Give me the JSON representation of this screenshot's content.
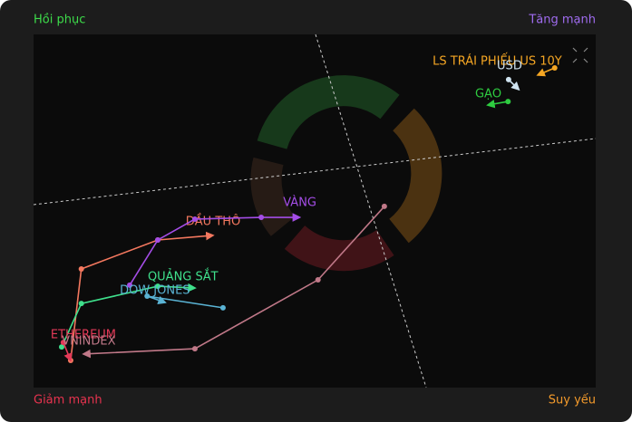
{
  "chart_data": {
    "type": "rrg",
    "quadrants": {
      "top_left": "Hồi phục",
      "top_right": "Tăng mạnh",
      "bottom_left": "Giảm mạnh",
      "bottom_right": "Suy yếu"
    },
    "quadrant_colors": {
      "top_left": "#3ddc4a",
      "top_right": "#a06cf0",
      "bottom_left": "#e8334f",
      "bottom_right": "#f39a2b"
    },
    "xlim": [
      0,
      100
    ],
    "ylim": [
      0,
      100
    ],
    "series": [
      {
        "name": "DẦU THÔ",
        "color": "#f4785f",
        "x": [
          6.6,
          8.5,
          22.1,
          31.9
        ],
        "y": [
          7.7,
          33.6,
          41.8,
          43.1
        ]
      },
      {
        "name": "VÀNG",
        "color": "#a44de6",
        "x": [
          17.1,
          22.1,
          28.7,
          40.5,
          47.3
        ],
        "y": [
          29.0,
          41.8,
          47.7,
          48.2,
          48.2
        ]
      },
      {
        "name": "QUẢNG SẮT",
        "color": "#3fe08c",
        "x": [
          5.0,
          8.5,
          22.1,
          28.7
        ],
        "y": [
          11.5,
          23.8,
          28.7,
          28.2
        ]
      },
      {
        "name": "DOW JONES",
        "color": "#5ab3d4",
        "x": [
          33.7,
          20.2,
          23.4
        ],
        "y": [
          22.6,
          25.9,
          24.1
        ]
      },
      {
        "name": "ETHEREUM",
        "color": "#e43a58",
        "x": [
          5.3,
          6.6
        ],
        "y": [
          12.8,
          7.7
        ]
      },
      {
        "name": "VNINDEX",
        "color": "#c07888",
        "x": [
          62.4,
          50.6,
          28.7,
          8.9
        ],
        "y": [
          51.3,
          30.5,
          11.0,
          9.5
        ]
      },
      {
        "name": "LS TRÁI PHIẾU US 10Y",
        "color": "#f5a623",
        "x": [
          92.7,
          89.7
        ],
        "y": [
          90.5,
          88.5
        ]
      },
      {
        "name": "USD",
        "color": "#cfe3f0",
        "x": [
          84.5,
          86.3
        ],
        "y": [
          87.2,
          84.4
        ]
      },
      {
        "name": "GẠO",
        "color": "#2ecc40",
        "x": [
          84.4,
          80.8
        ],
        "y": [
          81.0,
          80.0
        ]
      }
    ]
  }
}
